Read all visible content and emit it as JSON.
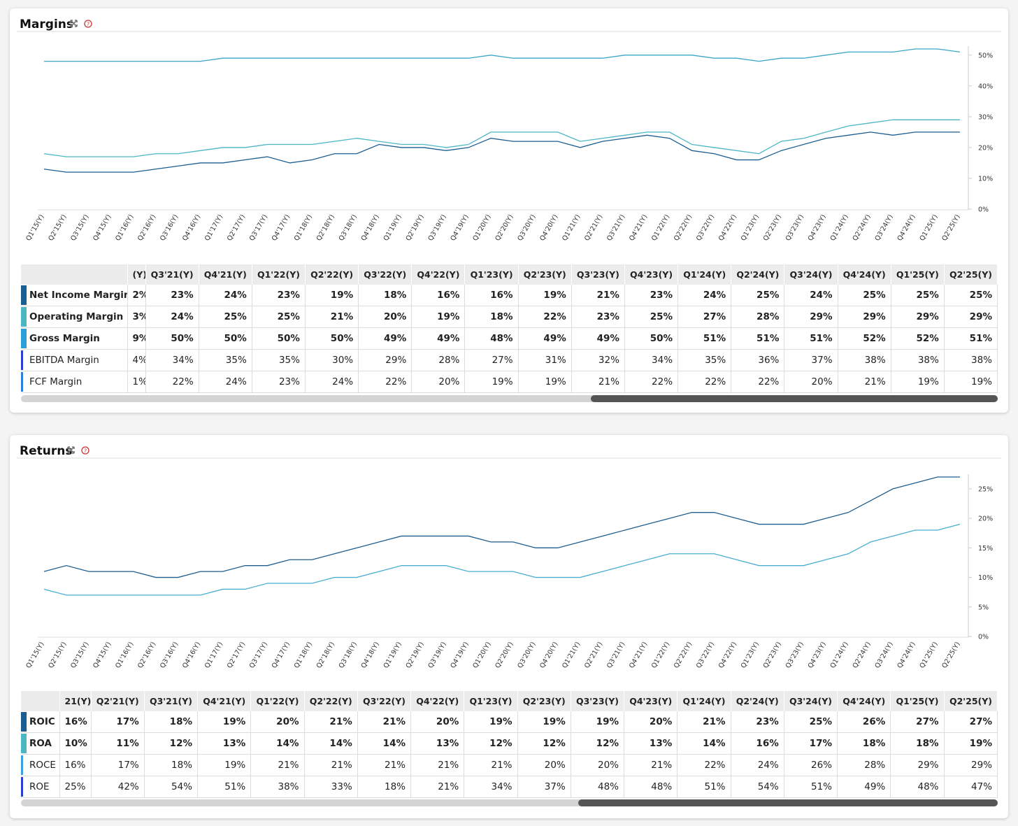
{
  "chart_data": [
    {
      "type": "line",
      "title": "Margins",
      "categories": [
        "Q1'15(Y)",
        "Q2'15(Y)",
        "Q3'15(Y)",
        "Q4'15(Y)",
        "Q1'16(Y)",
        "Q2'16(Y)",
        "Q3'16(Y)",
        "Q4'16(Y)",
        "Q1'17(Y)",
        "Q2'17(Y)",
        "Q3'17(Y)",
        "Q4'17(Y)",
        "Q1'18(Y)",
        "Q2'18(Y)",
        "Q3'18(Y)",
        "Q4'18(Y)",
        "Q1'19(Y)",
        "Q2'19(Y)",
        "Q3'19(Y)",
        "Q4'19(Y)",
        "Q1'20(Y)",
        "Q2'20(Y)",
        "Q3'20(Y)",
        "Q4'20(Y)",
        "Q1'21(Y)",
        "Q2'21(Y)",
        "Q3'21(Y)",
        "Q4'21(Y)",
        "Q1'22(Y)",
        "Q2'22(Y)",
        "Q3'22(Y)",
        "Q4'22(Y)",
        "Q1'23(Y)",
        "Q2'23(Y)",
        "Q3'23(Y)",
        "Q4'23(Y)",
        "Q1'24(Y)",
        "Q2'24(Y)",
        "Q3'24(Y)",
        "Q4'24(Y)",
        "Q1'25(Y)",
        "Q2'25(Y)"
      ],
      "series": [
        {
          "color": "#3aa6c6",
          "values": [
            48,
            48,
            48,
            48,
            48,
            48,
            48,
            48,
            49,
            49,
            49,
            49,
            49,
            49,
            49,
            49,
            49,
            49,
            49,
            49,
            50,
            49,
            49,
            49,
            49,
            49,
            50,
            50,
            50,
            50,
            49,
            49,
            48,
            49,
            49,
            50,
            51,
            51,
            51,
            52,
            52,
            51
          ]
        },
        {
          "color": "#4cb6c4",
          "values": [
            18,
            17,
            17,
            17,
            17,
            18,
            18,
            19,
            20,
            20,
            21,
            21,
            21,
            22,
            23,
            22,
            21,
            21,
            20,
            21,
            25,
            25,
            25,
            25,
            22,
            23,
            24,
            25,
            25,
            21,
            20,
            19,
            18,
            22,
            23,
            25,
            27,
            28,
            29,
            29,
            29,
            29
          ]
        },
        {
          "color": "#1b5e92",
          "values": [
            13,
            12,
            12,
            12,
            12,
            13,
            14,
            15,
            15,
            16,
            17,
            15,
            16,
            18,
            18,
            21,
            20,
            20,
            19,
            20,
            23,
            22,
            22,
            22,
            20,
            22,
            23,
            24,
            23,
            19,
            18,
            16,
            16,
            19,
            21,
            23,
            24,
            25,
            24,
            25,
            25,
            25
          ]
        }
      ],
      "ylim": [
        0,
        52
      ],
      "yticks": [
        {
          "value": 0,
          "label": "0%"
        },
        {
          "value": 10,
          "label": "10%"
        },
        {
          "value": 20,
          "label": "20%"
        },
        {
          "value": 30,
          "label": "30%"
        },
        {
          "value": 40,
          "label": "40%"
        },
        {
          "value": 50,
          "label": "50%"
        }
      ]
    },
    {
      "type": "line",
      "title": "Returns",
      "categories": [
        "Q1'15(Y)",
        "Q2'15(Y)",
        "Q3'15(Y)",
        "Q4'15(Y)",
        "Q1'16(Y)",
        "Q2'16(Y)",
        "Q3'16(Y)",
        "Q4'16(Y)",
        "Q1'17(Y)",
        "Q2'17(Y)",
        "Q3'17(Y)",
        "Q4'17(Y)",
        "Q1'18(Y)",
        "Q2'18(Y)",
        "Q3'18(Y)",
        "Q4'18(Y)",
        "Q1'19(Y)",
        "Q2'19(Y)",
        "Q3'19(Y)",
        "Q4'19(Y)",
        "Q1'20(Y)",
        "Q2'20(Y)",
        "Q3'20(Y)",
        "Q4'20(Y)",
        "Q1'21(Y)",
        "Q2'21(Y)",
        "Q3'21(Y)",
        "Q4'21(Y)",
        "Q1'22(Y)",
        "Q2'22(Y)",
        "Q3'22(Y)",
        "Q4'22(Y)",
        "Q1'23(Y)",
        "Q2'23(Y)",
        "Q3'23(Y)",
        "Q4'23(Y)",
        "Q1'24(Y)",
        "Q2'24(Y)",
        "Q3'24(Y)",
        "Q4'24(Y)",
        "Q1'25(Y)",
        "Q2'25(Y)"
      ],
      "series": [
        {
          "color": "#1f5e8e",
          "values": [
            11,
            12,
            11,
            11,
            11,
            10,
            10,
            11,
            11,
            12,
            12,
            13,
            13,
            14,
            15,
            16,
            17,
            17,
            17,
            17,
            16,
            16,
            15,
            15,
            16,
            17,
            18,
            19,
            20,
            21,
            21,
            20,
            19,
            19,
            19,
            20,
            21,
            23,
            25,
            26,
            27,
            27
          ]
        },
        {
          "color": "#4aaed0",
          "values": [
            8,
            7,
            7,
            7,
            7,
            7,
            7,
            7,
            8,
            8,
            9,
            9,
            9,
            10,
            10,
            11,
            12,
            12,
            12,
            11,
            11,
            11,
            10,
            10,
            10,
            11,
            12,
            13,
            14,
            14,
            14,
            13,
            12,
            12,
            12,
            13,
            14,
            16,
            17,
            18,
            18,
            19
          ]
        }
      ],
      "ylim": [
        0,
        27
      ],
      "yticks": [
        {
          "value": 0,
          "label": "0%"
        },
        {
          "value": 5,
          "label": "5%"
        },
        {
          "value": 10,
          "label": "10%"
        },
        {
          "value": 15,
          "label": "15%"
        },
        {
          "value": 20,
          "label": "20%"
        },
        {
          "value": 25,
          "label": "25%"
        }
      ]
    }
  ],
  "tables": [
    {
      "columns": [
        "(Y)",
        "Q3'21(Y)",
        "Q4'21(Y)",
        "Q1'22(Y)",
        "Q2'22(Y)",
        "Q3'22(Y)",
        "Q4'22(Y)",
        "Q1'23(Y)",
        "Q2'23(Y)",
        "Q3'23(Y)",
        "Q4'23(Y)",
        "Q1'24(Y)",
        "Q2'24(Y)",
        "Q3'24(Y)",
        "Q4'24(Y)",
        "Q1'25(Y)",
        "Q2'25(Y)"
      ],
      "rows": [
        {
          "name": "Net Income Margin",
          "color": "#1b5e92",
          "bold": true,
          "values": [
            "2%",
            "23%",
            "24%",
            "23%",
            "19%",
            "18%",
            "16%",
            "16%",
            "19%",
            "21%",
            "23%",
            "24%",
            "25%",
            "24%",
            "25%",
            "25%",
            "25%"
          ]
        },
        {
          "name": "Operating Margin",
          "color": "#4cb6c4",
          "bold": true,
          "values": [
            "3%",
            "24%",
            "25%",
            "25%",
            "21%",
            "20%",
            "19%",
            "18%",
            "22%",
            "23%",
            "25%",
            "27%",
            "28%",
            "29%",
            "29%",
            "29%",
            "29%"
          ]
        },
        {
          "name": "Gross Margin",
          "color": "#2a9fd8",
          "bold": true,
          "values": [
            "9%",
            "50%",
            "50%",
            "50%",
            "50%",
            "49%",
            "49%",
            "48%",
            "49%",
            "49%",
            "50%",
            "51%",
            "51%",
            "51%",
            "52%",
            "52%",
            "51%"
          ]
        },
        {
          "name": "EBITDA Margin",
          "color": "#2a3fd0",
          "bold": false,
          "values": [
            "4%",
            "34%",
            "35%",
            "35%",
            "30%",
            "29%",
            "28%",
            "27%",
            "31%",
            "32%",
            "34%",
            "35%",
            "36%",
            "37%",
            "38%",
            "38%",
            "38%"
          ]
        },
        {
          "name": "FCF Margin",
          "color": "#2a7fe0",
          "bold": false,
          "values": [
            "1%",
            "22%",
            "24%",
            "23%",
            "24%",
            "22%",
            "20%",
            "19%",
            "19%",
            "21%",
            "22%",
            "22%",
            "22%",
            "20%",
            "21%",
            "19%",
            "19%"
          ]
        }
      ]
    },
    {
      "columns": [
        "21(Y)",
        "Q2'21(Y)",
        "Q3'21(Y)",
        "Q4'21(Y)",
        "Q1'22(Y)",
        "Q2'22(Y)",
        "Q3'22(Y)",
        "Q4'22(Y)",
        "Q1'23(Y)",
        "Q2'23(Y)",
        "Q3'23(Y)",
        "Q4'23(Y)",
        "Q1'24(Y)",
        "Q2'24(Y)",
        "Q3'24(Y)",
        "Q4'24(Y)",
        "Q1'25(Y)",
        "Q2'25(Y)"
      ],
      "rows": [
        {
          "name": "ROIC",
          "color": "#1b5e92",
          "bold": true,
          "values": [
            "16%",
            "17%",
            "18%",
            "19%",
            "20%",
            "21%",
            "21%",
            "20%",
            "19%",
            "19%",
            "19%",
            "20%",
            "21%",
            "23%",
            "25%",
            "26%",
            "27%",
            "27%"
          ]
        },
        {
          "name": "ROA",
          "color": "#4cb6c4",
          "bold": true,
          "values": [
            "10%",
            "11%",
            "12%",
            "13%",
            "14%",
            "14%",
            "14%",
            "13%",
            "12%",
            "12%",
            "12%",
            "13%",
            "14%",
            "16%",
            "17%",
            "18%",
            "18%",
            "19%"
          ]
        },
        {
          "name": "ROCE",
          "color": "#3ba0e0",
          "bold": false,
          "values": [
            "16%",
            "17%",
            "18%",
            "19%",
            "21%",
            "21%",
            "21%",
            "21%",
            "21%",
            "20%",
            "20%",
            "21%",
            "22%",
            "24%",
            "26%",
            "28%",
            "29%",
            "29%"
          ]
        },
        {
          "name": "ROE",
          "color": "#2a3fd0",
          "bold": false,
          "values": [
            "25%",
            "42%",
            "54%",
            "51%",
            "38%",
            "33%",
            "18%",
            "21%",
            "34%",
            "37%",
            "48%",
            "48%",
            "51%",
            "54%",
            "51%",
            "49%",
            "48%",
            "47%"
          ]
        }
      ]
    }
  ]
}
